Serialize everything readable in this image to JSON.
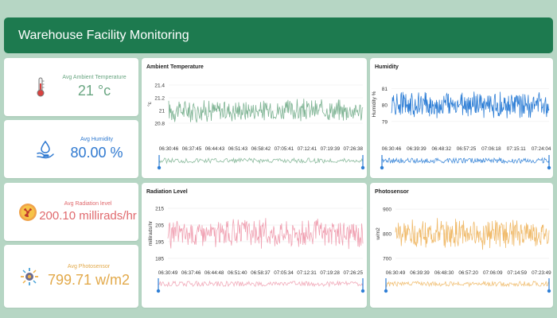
{
  "header": {
    "title": "Warehouse Facility Monitoring"
  },
  "stats": {
    "temperature": {
      "label": "Avg Ambient Temperature",
      "value": "21 °c",
      "color": "#6aa682",
      "icon": "thermometer-icon"
    },
    "humidity": {
      "label": "Avg Humidity",
      "value": "80.00 %",
      "color": "#2f79d0",
      "icon": "water-drop-hand-icon"
    },
    "radiation": {
      "label": "Avg Radiation level",
      "value": "200.10 millirads/hr",
      "color": "#e06a6e",
      "icon": "radiation-icon"
    },
    "photosensor": {
      "label": "Avg Photosensor",
      "value": "799.71 w/m2",
      "color": "#e2a94a",
      "icon": "photosensor-icon"
    }
  },
  "chart_data": [
    {
      "type": "line",
      "title": "Ambient Temperature",
      "ylabel": "°c",
      "yticks": [
        "21.4",
        "21.2",
        "21",
        "20.8"
      ],
      "ylim": [
        20.75,
        21.45
      ],
      "xticks": [
        "06:30:46",
        "06:37:45",
        "06:44:43",
        "06:51:43",
        "06:58:42",
        "07:05:41",
        "07:12:41",
        "07:19:39",
        "07:26:38"
      ],
      "series": [
        {
          "center": 21.0,
          "spread": 0.17,
          "color": "#7fb494"
        }
      ]
    },
    {
      "type": "line",
      "title": "Humidity",
      "ylabel": "Humidity %",
      "yticks": [
        "81",
        "80",
        "79"
      ],
      "ylim": [
        78.7,
        81.4
      ],
      "xticks": [
        "06:30:46",
        "06:39:39",
        "06:48:32",
        "06:57:25",
        "07:06:18",
        "07:15:11",
        "07:24:04"
      ],
      "series": [
        {
          "center": 80.0,
          "spread": 0.75,
          "color": "#2f7fd6"
        }
      ]
    },
    {
      "type": "line",
      "title": "Radiation Level",
      "ylabel": "millirads/hr",
      "yticks": [
        "215",
        "205",
        "195",
        "185"
      ],
      "ylim": [
        184,
        216
      ],
      "xticks": [
        "06:30:49",
        "06:37:46",
        "06:44:48",
        "06:51:40",
        "06:58:37",
        "07:05:34",
        "07:12:31",
        "07:19:28",
        "07:26:25"
      ],
      "series": [
        {
          "center": 200.0,
          "spread": 8.0,
          "color": "#f0a2b3"
        }
      ]
    },
    {
      "type": "line",
      "title": "Photosensor",
      "ylabel": "w/m2",
      "yticks": [
        "900",
        "800",
        "700"
      ],
      "ylim": [
        690,
        910
      ],
      "xticks": [
        "06:30:49",
        "06:39:39",
        "06:48:30",
        "06:57:20",
        "07:06:09",
        "07:14:59",
        "07:23:49"
      ],
      "series": [
        {
          "center": 800.0,
          "spread": 55.0,
          "color": "#f0bb6c"
        }
      ]
    }
  ]
}
